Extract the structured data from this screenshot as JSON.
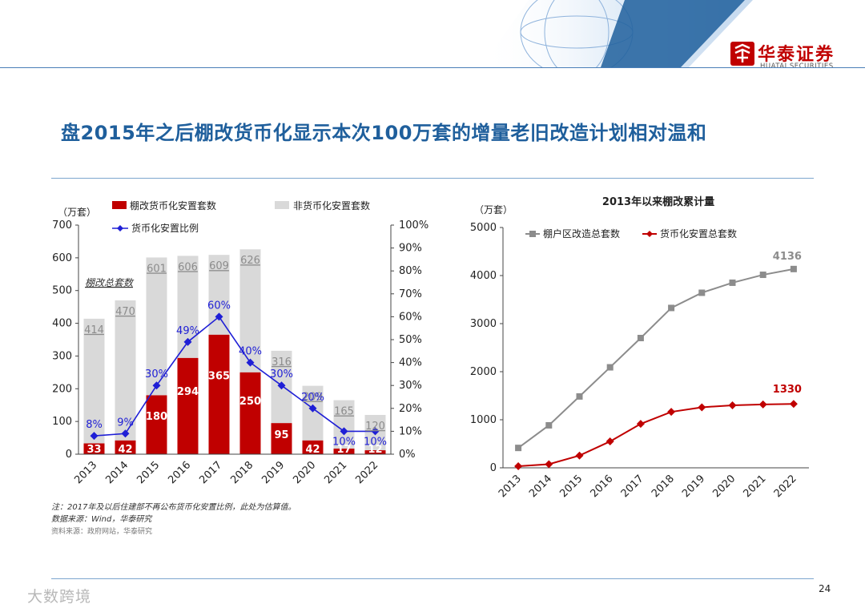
{
  "header": {
    "title": "盘2015年之后棚改货币化显示本次100万套的增量老旧改造计划相对温和",
    "logo_cn": "华泰证券",
    "logo_en": "HUATAI SECURITIES",
    "brand_color": "#c00000",
    "title_color": "#1f5f9c"
  },
  "footer": {
    "note1": "注：2017年及以后住建部不再公布货币化安置比例，此处为估算值。",
    "note2": "数据来源：Wind，华泰研究",
    "source": "资料来源：政府网站，华泰研究",
    "page": "24",
    "watermark": "大数跨境"
  },
  "chart_data": [
    {
      "type": "bar",
      "unit_label": "（万套）",
      "legend": {
        "monetized": "棚改货币化安置套数",
        "non_monetized": "非货币化安置套数",
        "ratio": "货币化安置比例"
      },
      "annotation": "棚改总套数",
      "categories": [
        "2013",
        "2014",
        "2015",
        "2016",
        "2017",
        "2018",
        "2019",
        "2020",
        "2021",
        "2022"
      ],
      "series": [
        {
          "name": "棚改货币化安置套数",
          "color": "#c00000",
          "values": [
            33,
            42,
            180,
            294,
            365,
            250,
            95,
            42,
            17,
            12
          ]
        },
        {
          "name": "非货币化安置套数",
          "color": "#d9d9d9",
          "values": [
            381,
            428,
            421,
            312,
            244,
            376,
            221,
            167,
            148,
            108
          ]
        }
      ],
      "totals": [
        414,
        470,
        601,
        606,
        609,
        626,
        316,
        209,
        165,
        120
      ],
      "ratio": {
        "name": "货币化安置比例",
        "color": "#1f1fd6",
        "values": [
          8,
          9,
          30,
          49,
          60,
          40,
          30,
          20,
          10,
          10
        ]
      },
      "ratio_labels": [
        "8%",
        "9%",
        "30%",
        "49%",
        "60%",
        "40%",
        "30%",
        "20%",
        "10%",
        "10%"
      ],
      "ylim": [
        0,
        700
      ],
      "yticks": [
        "0",
        "100",
        "200",
        "300",
        "400",
        "500",
        "600",
        "700"
      ],
      "y2lim": [
        0,
        100
      ],
      "y2ticks": [
        "0%",
        "10%",
        "20%",
        "30%",
        "40%",
        "50%",
        "60%",
        "70%",
        "80%",
        "90%",
        "100%"
      ]
    },
    {
      "type": "line",
      "title": "2013年以来棚改累计量",
      "unit_label": "（万套）",
      "categories": [
        "2013",
        "2014",
        "2015",
        "2016",
        "2017",
        "2018",
        "2019",
        "2020",
        "2021",
        "2022"
      ],
      "series": [
        {
          "name": "棚户区改造总套数",
          "color": "#8c8c8c",
          "values": [
            414,
            884,
            1485,
            2091,
            2700,
            3326,
            3642,
            3851,
            4016,
            4136
          ]
        },
        {
          "name": "货币化安置总套数",
          "color": "#c00000",
          "values": [
            33,
            75,
            255,
            549,
            914,
            1164,
            1259,
            1301,
            1318,
            1330
          ]
        }
      ],
      "end_labels": [
        "4136",
        "1330"
      ],
      "ylim": [
        0,
        5000
      ],
      "yticks": [
        "0",
        "1000",
        "2000",
        "3000",
        "4000",
        "5000"
      ]
    }
  ]
}
